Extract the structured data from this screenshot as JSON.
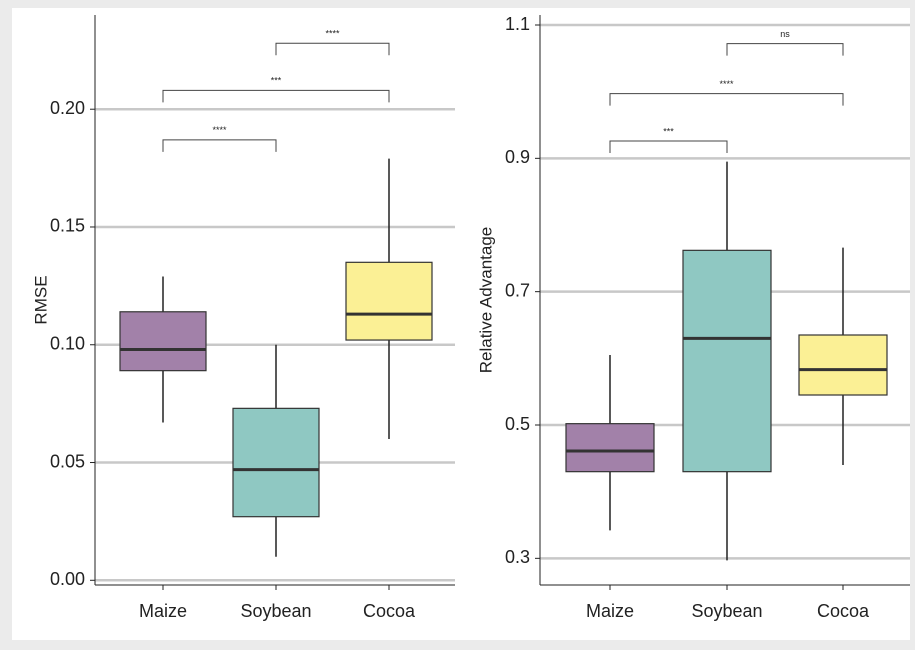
{
  "chart_data": [
    {
      "type": "box",
      "ylabel": "RMSE",
      "categories": [
        "Maize",
        "Soybean",
        "Cocoa"
      ],
      "colors": [
        "#a281a9",
        "#8fc8c2",
        "#fbf095"
      ],
      "boxes": [
        {
          "low": 0.067,
          "q1": 0.089,
          "median": 0.098,
          "q3": 0.114,
          "high": 0.129
        },
        {
          "low": 0.01,
          "q1": 0.027,
          "median": 0.047,
          "q3": 0.073,
          "high": 0.1
        },
        {
          "low": 0.06,
          "q1": 0.102,
          "median": 0.113,
          "q3": 0.135,
          "high": 0.179
        }
      ],
      "brackets": [
        {
          "from": 0,
          "to": 1,
          "y": 0.187,
          "label": "****"
        },
        {
          "from": 0,
          "to": 2,
          "y": 0.208,
          "label": "***"
        },
        {
          "from": 1,
          "to": 2,
          "y": 0.228,
          "label": "****"
        }
      ],
      "ylim": [
        -0.002,
        0.24
      ],
      "yticks": [
        {
          "value": 0,
          "label": "0.00"
        },
        {
          "value": 0.05,
          "label": "0.05"
        },
        {
          "value": 0.1,
          "label": "0.10"
        },
        {
          "value": 0.15,
          "label": "0.15"
        },
        {
          "value": 0.2,
          "label": "0.20"
        }
      ],
      "grid": true
    },
    {
      "type": "box",
      "ylabel": "Relative Advantage",
      "categories": [
        "Maize",
        "Soybean",
        "Cocoa"
      ],
      "colors": [
        "#a281a9",
        "#8fc8c2",
        "#fbf095"
      ],
      "boxes": [
        {
          "low": 0.342,
          "q1": 0.43,
          "median": 0.461,
          "q3": 0.502,
          "high": 0.605
        },
        {
          "low": 0.297,
          "q1": 0.43,
          "median": 0.63,
          "q3": 0.762,
          "high": 0.895
        },
        {
          "low": 0.44,
          "q1": 0.545,
          "median": 0.583,
          "q3": 0.635,
          "high": 0.766
        }
      ],
      "brackets": [
        {
          "from": 0,
          "to": 1,
          "y": 0.926,
          "label": "***"
        },
        {
          "from": 0,
          "to": 2,
          "y": 0.997,
          "label": "****"
        },
        {
          "from": 1,
          "to": 2,
          "y": 1.072,
          "label": "ns"
        }
      ],
      "ylim": [
        0.26,
        1.115
      ],
      "yticks": [
        0.3,
        0.5,
        0.7,
        0.9,
        1.1
      ],
      "grid": true
    }
  ]
}
